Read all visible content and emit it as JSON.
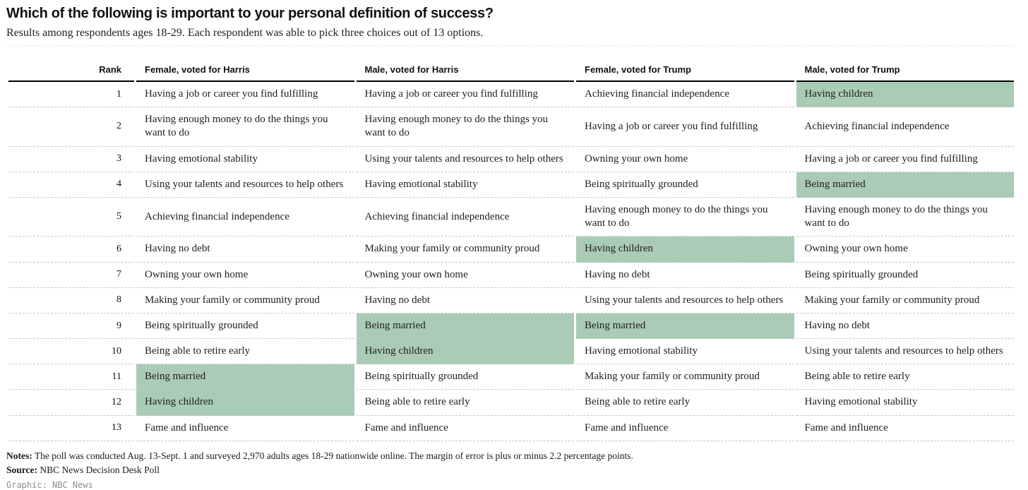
{
  "chart_data": {
    "type": "table",
    "title": "Which of the following is important to your personal definition of success?",
    "subtitle": "Results among respondents ages 18-29. Each respondent was able to pick three choices out of 13 options.",
    "columns": [
      "Rank",
      "Female, voted for Harris",
      "Male, voted for Harris",
      "Female, voted for Trump",
      "Male, voted for Trump"
    ],
    "highlight_meaning": "family-related choices (Being married / Having children) highlighted in green",
    "rows": [
      {
        "rank": "1",
        "cells": [
          "Having a job or career you find fulfilling",
          "Having a job or career you find fulfilling",
          "Achieving financial independence",
          "Having children"
        ],
        "highlights": [
          false,
          false,
          false,
          true
        ]
      },
      {
        "rank": "2",
        "cells": [
          "Having enough money to do the things you want to do",
          "Having enough money to do the things you want to do",
          "Having a job or career you find fulfilling",
          "Achieving financial independence"
        ],
        "highlights": [
          false,
          false,
          false,
          false
        ]
      },
      {
        "rank": "3",
        "cells": [
          "Having emotional stability",
          "Using your talents and resources to help others",
          "Owning your own home",
          "Having a job or career you find fulfilling"
        ],
        "highlights": [
          false,
          false,
          false,
          false
        ]
      },
      {
        "rank": "4",
        "cells": [
          "Using your talents and resources to help others",
          "Having emotional stability",
          "Being spiritually grounded",
          "Being married"
        ],
        "highlights": [
          false,
          false,
          false,
          true
        ]
      },
      {
        "rank": "5",
        "cells": [
          "Achieving financial independence",
          "Achieving financial independence",
          "Having enough money to do the things you want to do",
          "Having enough money to do the things you want to do"
        ],
        "highlights": [
          false,
          false,
          false,
          false
        ]
      },
      {
        "rank": "6",
        "cells": [
          "Having no debt",
          "Making your family or community proud",
          "Having children",
          "Owning your own home"
        ],
        "highlights": [
          false,
          false,
          true,
          false
        ]
      },
      {
        "rank": "7",
        "cells": [
          "Owning your own home",
          "Owning your own home",
          "Having no debt",
          "Being spiritually grounded"
        ],
        "highlights": [
          false,
          false,
          false,
          false
        ]
      },
      {
        "rank": "8",
        "cells": [
          "Making your family or community proud",
          "Having no debt",
          "Using your talents and resources to help others",
          "Making your family or community proud"
        ],
        "highlights": [
          false,
          false,
          false,
          false
        ]
      },
      {
        "rank": "9",
        "cells": [
          "Being spiritually grounded",
          "Being married",
          "Being married",
          "Having no debt"
        ],
        "highlights": [
          false,
          true,
          true,
          false
        ]
      },
      {
        "rank": "10",
        "cells": [
          "Being able to retire early",
          "Having children",
          "Having emotional stability",
          "Using your talents and resources to help others"
        ],
        "highlights": [
          false,
          true,
          false,
          false
        ]
      },
      {
        "rank": "11",
        "cells": [
          "Being married",
          "Being spiritually grounded",
          "Making your family or community proud",
          "Being able to retire early"
        ],
        "highlights": [
          true,
          false,
          false,
          false
        ]
      },
      {
        "rank": "12",
        "cells": [
          "Having children",
          "Being able to retire early",
          "Being able to retire early",
          "Having emotional stability"
        ],
        "highlights": [
          true,
          false,
          false,
          false
        ]
      },
      {
        "rank": "13",
        "cells": [
          "Fame and influence",
          "Fame and influence",
          "Fame and influence",
          "Fame and influence"
        ],
        "highlights": [
          false,
          false,
          false,
          false
        ]
      }
    ]
  },
  "colors": {
    "highlight_green": "#aacbb5",
    "header_border": "#000000",
    "row_divider": "#c8c8c8"
  },
  "footer": {
    "notes_label": "Notes:",
    "notes_text": "The poll was conducted Aug. 13-Sept. 1 and surveyed 2,970 adults ages 18-29 nationwide online. The margin of error is plus or minus 2.2 percentage points.",
    "source_label": "Source:",
    "source_text": "NBC News Decision Desk Poll",
    "credit": "Graphic: NBC News"
  }
}
